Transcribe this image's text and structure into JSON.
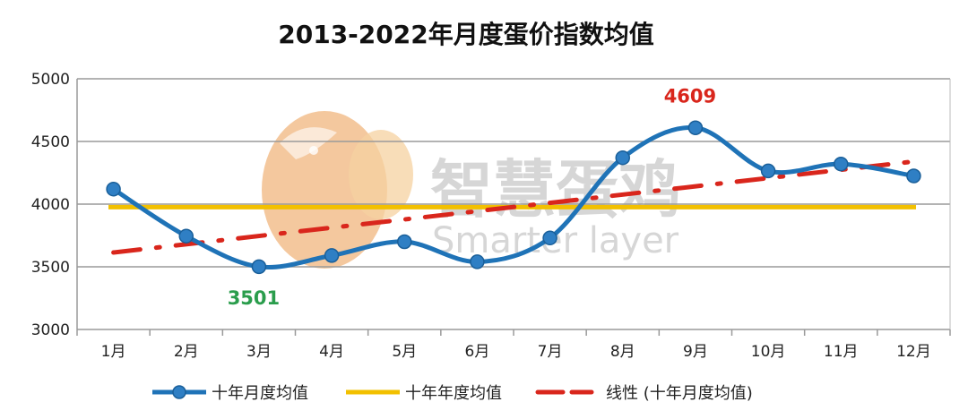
{
  "chart_data": {
    "type": "line",
    "title": "2013-2022年月度蛋价指数均值",
    "categories": [
      "1月",
      "2月",
      "3月",
      "4月",
      "5月",
      "6月",
      "7月",
      "8月",
      "9月",
      "10月",
      "11月",
      "12月"
    ],
    "series": [
      {
        "name": "十年月度均值",
        "values": [
          4120,
          3745,
          3501,
          3590,
          3700,
          3540,
          3730,
          4370,
          4609,
          4265,
          4320,
          4225
        ],
        "color": "#1f73b7"
      },
      {
        "name": "十年年度均值",
        "values": [
          3976,
          3976,
          3976,
          3976,
          3976,
          3976,
          3976,
          3976,
          3976,
          3976,
          3976,
          3976
        ],
        "color": "#f2c000"
      },
      {
        "name": "线性 (十年月度均值)",
        "values": [
          3614,
          3680,
          3746,
          3812,
          3878,
          3944,
          4010,
          4076,
          4142,
          4208,
          4274,
          4340
        ],
        "color": "#d9261c"
      }
    ],
    "yticks": [
      "3000",
      "3500",
      "4000",
      "4500",
      "5000"
    ],
    "ylim": [
      3000,
      5000
    ],
    "grid": true,
    "legend_position": "bottom",
    "annotations": [
      {
        "text": "4609",
        "category": "9月",
        "value": 4609,
        "color": "#d9261c"
      },
      {
        "text": "3501",
        "category": "3月",
        "value": 3501,
        "color": "#2a9d4c"
      }
    ]
  },
  "watermark": {
    "cn": "智慧蛋鸡",
    "en": "Smarter layer",
    "icon": "chicken-egg-logo"
  }
}
